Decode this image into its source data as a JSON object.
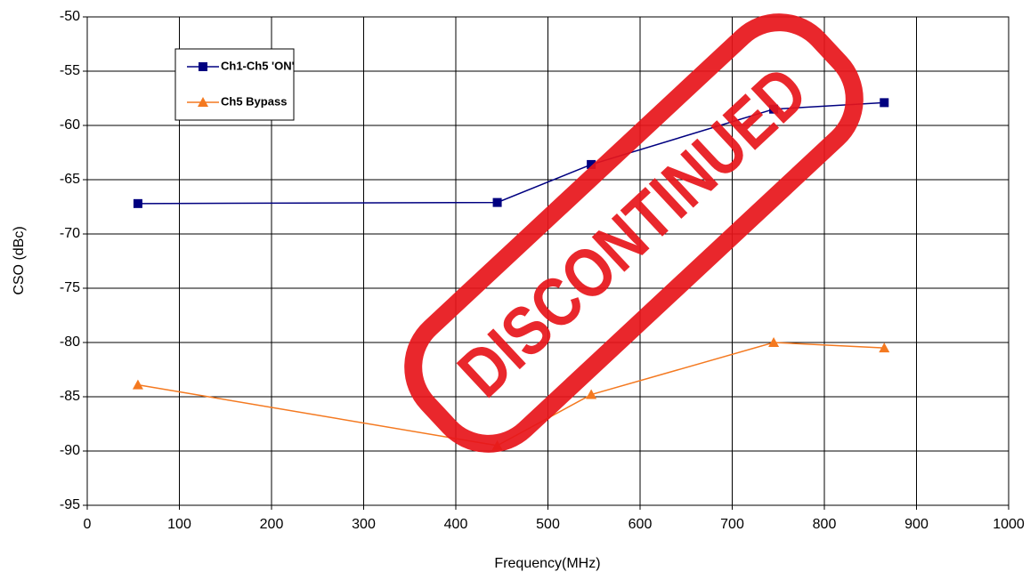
{
  "chart_data": {
    "type": "line",
    "xlabel": "Frequency(MHz)",
    "ylabel": "CSO (dBc)",
    "xlim": [
      0,
      1000
    ],
    "xticks": [
      0,
      100,
      200,
      300,
      400,
      500,
      600,
      700,
      800,
      900,
      1000
    ],
    "ylim": [
      -95,
      -50
    ],
    "yticks": [
      -50,
      -55,
      -60,
      -65,
      -70,
      -75,
      -80,
      -85,
      -90,
      -95
    ],
    "grid": true,
    "x": [
      55,
      445,
      547,
      745,
      865
    ],
    "series": [
      {
        "name": "Ch1-Ch5 'ON'",
        "color": "#000080",
        "marker": "square",
        "values": [
          -67.2,
          -67.1,
          -63.6,
          -58.5,
          -57.9
        ]
      },
      {
        "name": "Ch5 Bypass",
        "color": "#f47920",
        "marker": "triangle",
        "values": [
          -83.9,
          -89.5,
          -84.8,
          -80.0,
          -80.5
        ]
      }
    ],
    "stamp": {
      "text": "DISCONTINUED",
      "color": "#e8151b"
    }
  }
}
